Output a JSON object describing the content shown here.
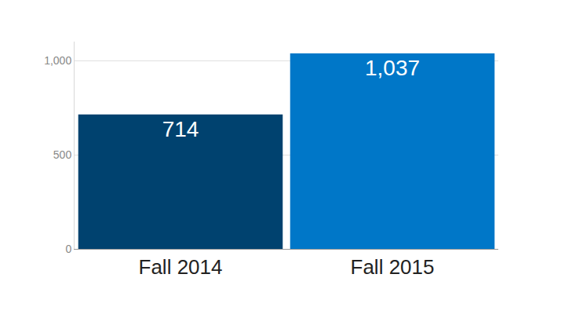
{
  "chart_data": {
    "type": "bar",
    "categories": [
      "Fall 2014",
      "Fall 2015"
    ],
    "values": [
      714,
      1037
    ],
    "value_labels": [
      "714",
      "1,037"
    ],
    "colors": [
      "#00426f",
      "#0077c8"
    ],
    "ylim": [
      0,
      1100
    ],
    "yticks": [
      0,
      500,
      {
        "value": 1000,
        "label": "1,000"
      }
    ],
    "grid": true,
    "data_labels": true
  }
}
